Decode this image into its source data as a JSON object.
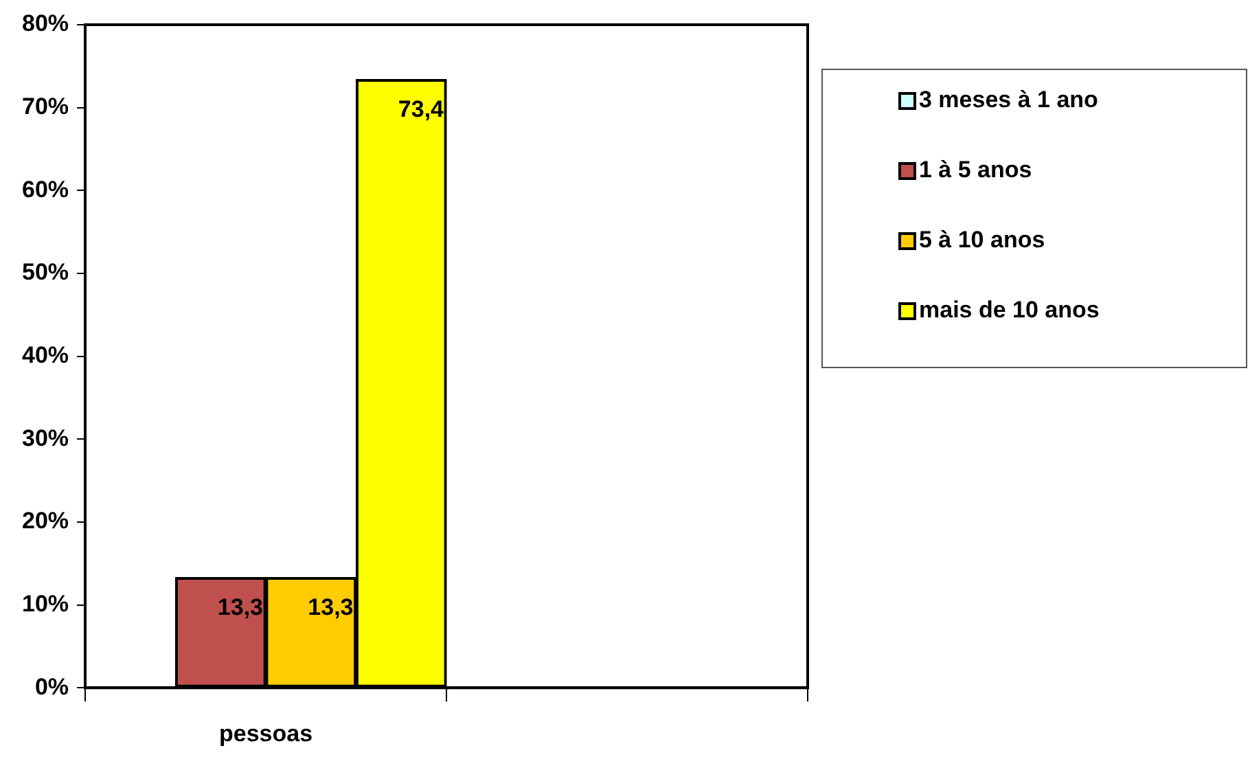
{
  "chart_data": {
    "type": "bar",
    "categories": [
      "pessoas",
      null
    ],
    "series": [
      {
        "name": "3 meses à 1 ano",
        "color": "#ccffff",
        "values": [
          0,
          null
        ]
      },
      {
        "name": "1 à 5 anos",
        "color": "#c0504d",
        "values": [
          13.3,
          null
        ],
        "value_labels": [
          "13,3",
          null
        ]
      },
      {
        "name": "5 à 10 anos",
        "color": "#ffcc00",
        "values": [
          13.3,
          null
        ],
        "value_labels": [
          "13,3",
          null
        ]
      },
      {
        "name": "mais de 10 anos",
        "color": "#ffff00",
        "values": [
          73.4,
          null
        ],
        "value_labels": [
          "73,4",
          null
        ]
      }
    ],
    "ylim": [
      0,
      80
    ],
    "yticks": [
      {
        "value": 0,
        "label": "0%"
      },
      {
        "value": 10,
        "label": "10%"
      },
      {
        "value": 20,
        "label": "20%"
      },
      {
        "value": 30,
        "label": "30%"
      },
      {
        "value": 40,
        "label": "40%"
      },
      {
        "value": 50,
        "label": "50%"
      },
      {
        "value": 60,
        "label": "60%"
      },
      {
        "value": 70,
        "label": "70%"
      },
      {
        "value": 80,
        "label": "80%"
      }
    ],
    "grid": false,
    "legend": "right"
  }
}
